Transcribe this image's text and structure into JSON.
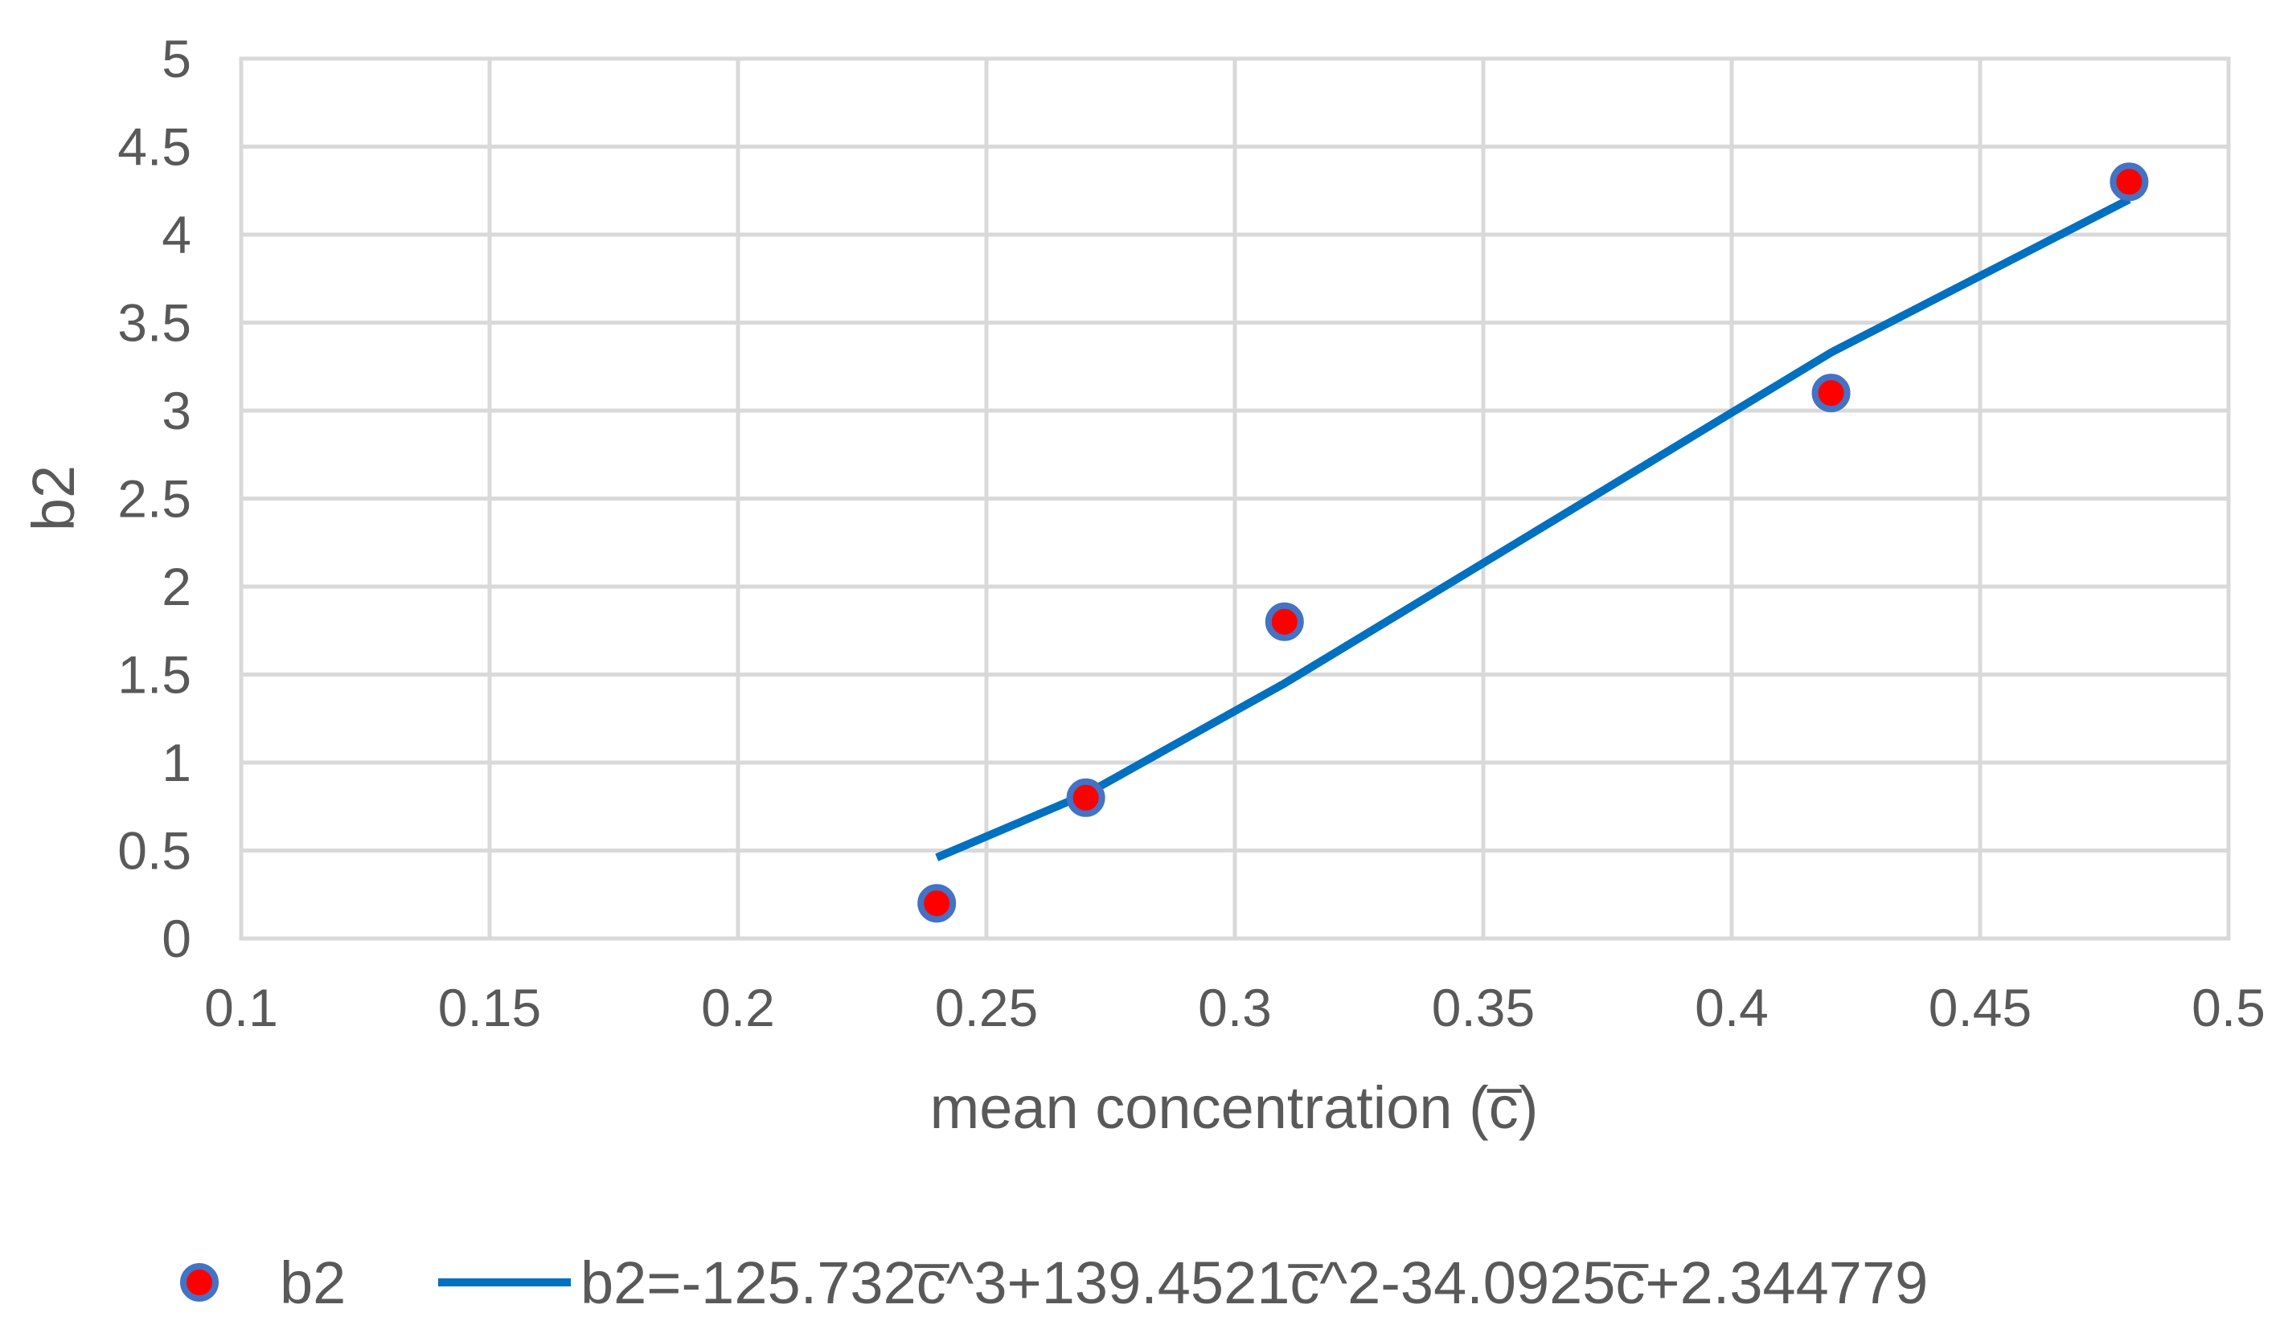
{
  "chart_data": {
    "type": "scatter",
    "xlabel": "mean concentration (c̅)",
    "ylabel": "b2",
    "xlim": [
      0.1,
      0.5
    ],
    "ylim": [
      0,
      5
    ],
    "x_ticks": [
      "0.1",
      "0.15",
      "0.2",
      "0.25",
      "0.3",
      "0.35",
      "0.4",
      "0.45",
      "0.5"
    ],
    "y_ticks": [
      "0",
      "0.5",
      "1",
      "1.5",
      "2",
      "2.5",
      "3",
      "3.5",
      "4",
      "4.5",
      "5"
    ],
    "grid": true,
    "legend_position": "bottom",
    "series": [
      {
        "name": "b2",
        "kind": "scatter",
        "marker_fill": "#FF0000",
        "marker_edge": "#4472C4",
        "x": [
          0.24,
          0.27,
          0.31,
          0.42,
          0.48
        ],
        "y": [
          0.2,
          0.8,
          1.8,
          3.1,
          4.3
        ]
      },
      {
        "name": "b2=-125.732c̅^3+139.4521c̅^2-34.0925c̅+2.344779",
        "kind": "line",
        "color": "#0070C0",
        "x": [
          0.24,
          0.27,
          0.31,
          0.42,
          0.48
        ],
        "y": [
          0.46,
          0.82,
          1.45,
          3.33,
          4.2
        ]
      }
    ]
  },
  "colors": {
    "grid": "#D9D9D9",
    "text": "#595959"
  }
}
